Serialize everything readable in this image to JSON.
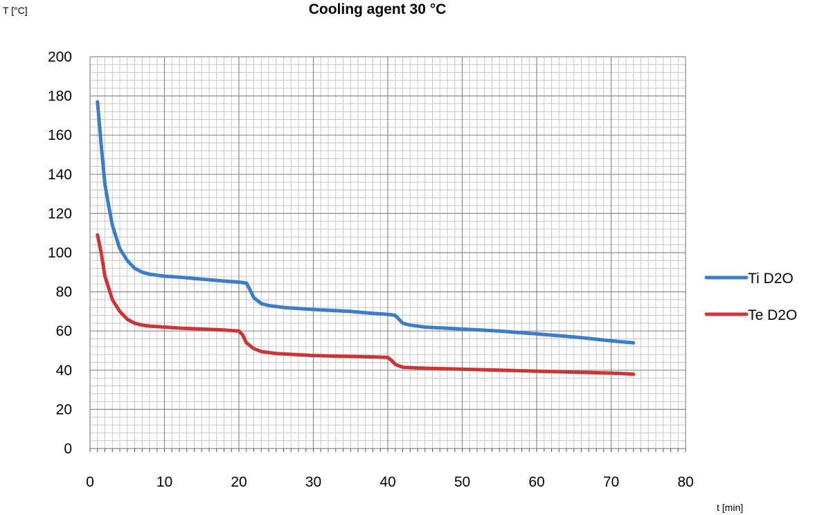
{
  "chart_data": {
    "type": "line",
    "title": "Cooling agent 30 °C",
    "xlabel": "t [min]",
    "ylabel": "T [°C]",
    "xlim": [
      0,
      80
    ],
    "ylim": [
      0,
      200
    ],
    "x_ticks": [
      0,
      10,
      20,
      30,
      40,
      50,
      60,
      70,
      80
    ],
    "y_ticks": [
      0,
      20,
      40,
      60,
      80,
      100,
      120,
      140,
      160,
      180,
      200
    ],
    "x_minor_step": 1,
    "y_minor_step": 4,
    "grid": true,
    "legend_position": "right",
    "series": [
      {
        "name": "Ti D2O",
        "color": "#3a7dc9",
        "points": [
          [
            1,
            177
          ],
          [
            1.5,
            155
          ],
          [
            2,
            135
          ],
          [
            2.5,
            124
          ],
          [
            3,
            114
          ],
          [
            3.5,
            108
          ],
          [
            4,
            102
          ],
          [
            5,
            96
          ],
          [
            6,
            92
          ],
          [
            7,
            90
          ],
          [
            8,
            89
          ],
          [
            10,
            88
          ],
          [
            12,
            87.5
          ],
          [
            15,
            86.5
          ],
          [
            18,
            85.5
          ],
          [
            20,
            85
          ],
          [
            21,
            84.5
          ],
          [
            21.5,
            81
          ],
          [
            22,
            77
          ],
          [
            23,
            74
          ],
          [
            24,
            73
          ],
          [
            26,
            72
          ],
          [
            30,
            71
          ],
          [
            35,
            70
          ],
          [
            38,
            69
          ],
          [
            40,
            68.5
          ],
          [
            41,
            68
          ],
          [
            41.5,
            66
          ],
          [
            42,
            64
          ],
          [
            43,
            63
          ],
          [
            45,
            62
          ],
          [
            50,
            61
          ],
          [
            55,
            60
          ],
          [
            60,
            58.5
          ],
          [
            65,
            57
          ],
          [
            70,
            55
          ],
          [
            73,
            54
          ]
        ]
      },
      {
        "name": "Te D2O",
        "color": "#cc3535",
        "points": [
          [
            1,
            109
          ],
          [
            1.5,
            100
          ],
          [
            2,
            88
          ],
          [
            2.5,
            82
          ],
          [
            3,
            76
          ],
          [
            3.5,
            73
          ],
          [
            4,
            70
          ],
          [
            5,
            66
          ],
          [
            6,
            64
          ],
          [
            7,
            63
          ],
          [
            8,
            62.5
          ],
          [
            10,
            62
          ],
          [
            12,
            61.5
          ],
          [
            15,
            61
          ],
          [
            18,
            60.5
          ],
          [
            20,
            60
          ],
          [
            20.5,
            58
          ],
          [
            21,
            54
          ],
          [
            22,
            51
          ],
          [
            23,
            49.5
          ],
          [
            25,
            48.5
          ],
          [
            30,
            47.5
          ],
          [
            35,
            47
          ],
          [
            38,
            46.8
          ],
          [
            40,
            46.5
          ],
          [
            40.5,
            45
          ],
          [
            41,
            43
          ],
          [
            42,
            41.5
          ],
          [
            45,
            41
          ],
          [
            50,
            40.5
          ],
          [
            55,
            40
          ],
          [
            60,
            39.5
          ],
          [
            65,
            39
          ],
          [
            70,
            38.5
          ],
          [
            73,
            38
          ]
        ]
      }
    ]
  }
}
